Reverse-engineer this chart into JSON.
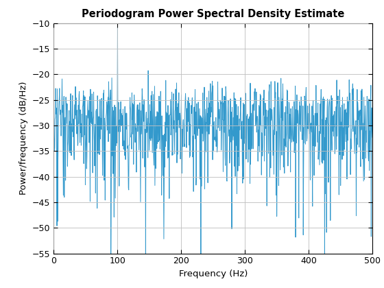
{
  "title": "Periodogram Power Spectral Density Estimate",
  "xlabel": "Frequency (Hz)",
  "ylabel": "Power/frequency (dB/Hz)",
  "xlim": [
    0,
    500
  ],
  "ylim": [
    -55,
    -10
  ],
  "xticks": [
    0,
    100,
    200,
    300,
    400,
    500
  ],
  "yticks": [
    -55,
    -50,
    -45,
    -40,
    -35,
    -30,
    -25,
    -20,
    -15,
    -10
  ],
  "line_color": "#3399CC",
  "bg_color": "#FFFFFF",
  "grid_color": "#C0C0C0",
  "seed": 12345,
  "n_points": 1000,
  "fs": 1000,
  "noise_floor": -28.0,
  "spike_freq": 100,
  "spike_amp": 14.5,
  "low_freq_dip_amp": 23.0,
  "figwidth": 5.6,
  "figheight": 4.2,
  "dpi": 100
}
